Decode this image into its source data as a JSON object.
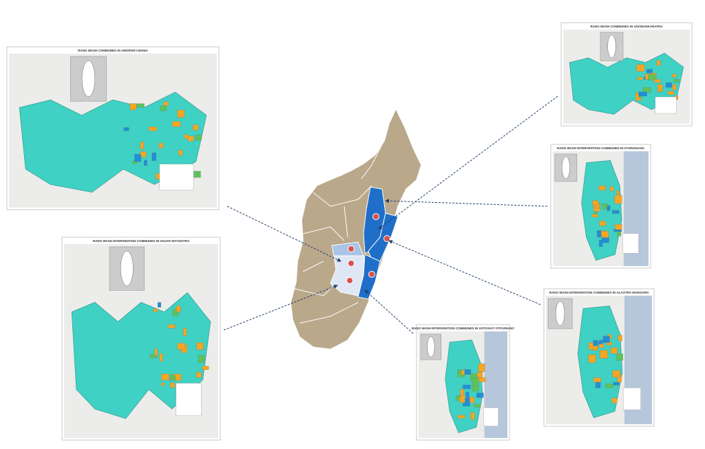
{
  "maps": [
    {
      "title": "RANO WASH COMMUNES IN AMORON'I MANIA"
    },
    {
      "title": "RANO WASH INTERVENTION COMMUNES IN HAUTE MATSIATRA"
    },
    {
      "title": "RANO WASH COMMUNES IN VAKINANKARATRA"
    },
    {
      "title": "RANO WASH INTERVENTION COMMUNES IN ATSINANANA"
    },
    {
      "title": "RANO WASH INTERVENTION COMMUNES IN ALAOTRA MANGORO"
    },
    {
      "title": "RANO WASH INTERVENTION COMMUNES IN VATOVAVY FITOVINANY"
    }
  ]
}
